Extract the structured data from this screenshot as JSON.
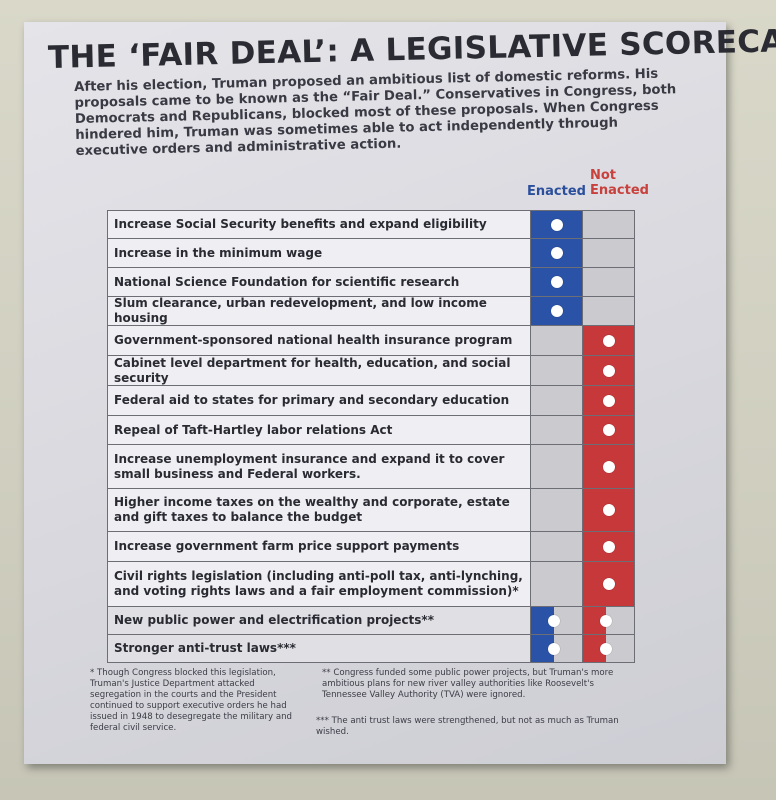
{
  "title": "THE ‘FAIR DEAL’: A LEGISLATIVE SCORECARD",
  "intro": "After his election, Truman proposed an ambitious list of domestic reforms. His proposals came to be known as the “Fair Deal.” Conservatives in Congress, both Democrats and Republicans, blocked most of these proposals. When Congress hindered him, Truman was sometimes able to act independently through executive orders and administrative action.",
  "columns": {
    "enacted": "Enacted",
    "not_enacted": "Not Enacted"
  },
  "colors": {
    "enacted": "#2a52a6",
    "not_enacted": "#c7383a"
  },
  "rows": [
    {
      "label": "Increase Social Security benefits and expand eligibility",
      "status": "enacted"
    },
    {
      "label": "Increase in the minimum wage",
      "status": "enacted"
    },
    {
      "label": "National Science Foundation for scientific research",
      "status": "enacted"
    },
    {
      "label": "Slum clearance, urban redevelopment, and low income housing",
      "status": "enacted"
    },
    {
      "label": "Government-sponsored national health insurance program",
      "status": "not_enacted"
    },
    {
      "label": "Cabinet level department for health, education, and social security",
      "status": "not_enacted"
    },
    {
      "label": "Federal aid to states for primary and secondary education",
      "status": "not_enacted"
    },
    {
      "label": "Repeal of Taft-Hartley labor relations Act",
      "status": "not_enacted"
    },
    {
      "label": "Increase unemployment insurance and expand it to cover small business and Federal workers.",
      "status": "not_enacted"
    },
    {
      "label": "Higher income taxes on the wealthy and corporate, estate and gift taxes to balance the budget",
      "status": "not_enacted"
    },
    {
      "label": "Increase government farm price support payments",
      "status": "not_enacted"
    },
    {
      "label": "Civil rights legislation (including anti-poll tax, anti-lynching, and voting rights laws and a fair employment commission)*",
      "status": "not_enacted"
    },
    {
      "label": "New public power and electrification projects**",
      "status": "partial"
    },
    {
      "label": "Stronger anti-trust laws***",
      "status": "partial"
    }
  ],
  "footnotes": {
    "single": "* Though Congress blocked this legislation, Truman's Justice Department attacked segregation in the courts and the President continued to support executive orders he had issued in 1948 to desegregate the military and federal civil service.",
    "double": "** Congress funded some public power projects, but Truman's more ambitious plans for new river valley authorities like Roosevelt's Tennessee Valley Authority (TVA) were ignored.",
    "triple": "*** The anti trust laws were strengthened, but not as much as Truman wished."
  }
}
